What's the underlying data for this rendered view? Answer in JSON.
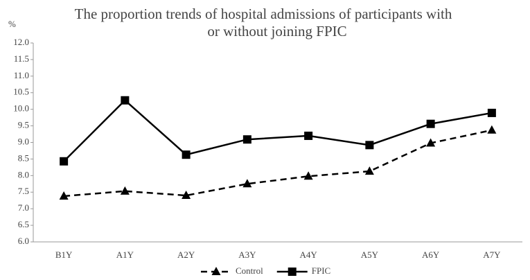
{
  "chart_data": {
    "type": "line",
    "title": [
      "The proportion trends of hospital admissions of participants with",
      "or without joining FPIC"
    ],
    "y_label": "%",
    "categories": [
      "B1Y",
      "A1Y",
      "A2Y",
      "A3Y",
      "A4Y",
      "A5Y",
      "A6Y",
      "A7Y"
    ],
    "series": [
      {
        "name": "Control",
        "color": "#000000",
        "dash": true,
        "marker": "triangle",
        "values": [
          7.38,
          7.53,
          7.4,
          7.75,
          7.98,
          8.13,
          8.98,
          9.37
        ]
      },
      {
        "name": "FPIC",
        "color": "#000000",
        "dash": false,
        "marker": "square",
        "values": [
          8.43,
          10.27,
          8.63,
          9.09,
          9.2,
          8.92,
          9.56,
          9.89
        ]
      }
    ],
    "ylim": [
      6,
      12
    ],
    "yticks": [
      {
        "value": 6,
        "label": "6.0"
      },
      6.5,
      {
        "value": 7,
        "label": "7.0"
      },
      7.5,
      {
        "value": 8,
        "label": "8.0"
      },
      8.5,
      {
        "value": 9,
        "label": "9.0"
      },
      9.5,
      {
        "value": 10,
        "label": "10.0"
      },
      10.5,
      {
        "value": 11,
        "label": "11.0"
      },
      11.5,
      {
        "value": 12,
        "label": "12.0"
      }
    ],
    "grid": false,
    "legend": "bottom"
  }
}
